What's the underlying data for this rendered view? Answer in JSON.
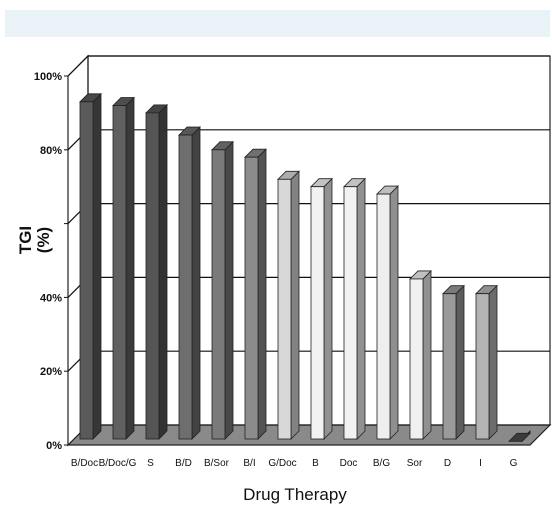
{
  "chart_data": {
    "type": "bar",
    "categories": [
      "B/Doc",
      "B/Doc/G",
      "S",
      "B/D",
      "B/Sor",
      "B/I",
      "G/Doc",
      "B",
      "Doc",
      "B/G",
      "Sor",
      "D",
      "I",
      "G"
    ],
    "values": [
      93,
      92,
      90,
      84,
      80,
      78,
      72,
      70,
      70,
      68,
      45,
      41,
      41,
      1
    ],
    "bar_colors": [
      "#5a5a5a",
      "#606060",
      "#555555",
      "#6e6e6e",
      "#7a7a7a",
      "#8c8c8c",
      "#d8d8d8",
      "#f2f2f2",
      "#f2f2f2",
      "#eeeeee",
      "#f0f0f0",
      "#9a9a9a",
      "#b4b4b4",
      "#4a4a4a"
    ],
    "yticks": [
      "0%",
      "20%",
      "40%",
      "",
      "80%",
      "100%"
    ],
    "ylim": [
      0,
      100
    ],
    "ylabel_line1": "TGI",
    "ylabel_line2": "(%)",
    "xlabel": "Drug Therapy",
    "grid": true
  }
}
